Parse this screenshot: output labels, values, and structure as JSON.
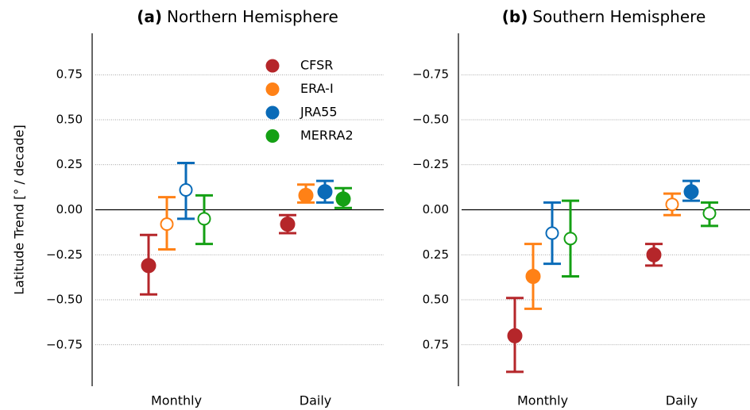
{
  "chart_data": [
    {
      "type": "errorbar",
      "label": "(a)",
      "title": "Northern Hemisphere",
      "ylabel": "Latitude Trend [° / decade]",
      "categories": [
        "Monthly",
        "Daily"
      ],
      "ylim": [
        -0.98,
        0.98
      ],
      "yticks": [
        {
          "value": -0.75,
          "label": "−0.75"
        },
        {
          "value": -0.5,
          "label": "−0.50"
        },
        {
          "value": -0.25,
          "label": "−0.25"
        },
        {
          "value": 0,
          "label": "0.00"
        },
        0.25,
        {
          "value": 0.5,
          "label": "0.50"
        },
        0.75
      ],
      "grid": true,
      "legend": "upper right",
      "series": [
        {
          "name": "CFSR",
          "color": "#b5262a",
          "values": [
            -0.31,
            -0.08
          ],
          "lower": [
            -0.47,
            -0.13
          ],
          "upper": [
            -0.14,
            -0.03
          ],
          "filled": [
            true,
            true
          ]
        },
        {
          "name": "ERA-I",
          "color": "#ff8116",
          "values": [
            -0.08,
            0.08
          ],
          "lower": [
            -0.22,
            0.04
          ],
          "upper": [
            0.07,
            0.14
          ],
          "filled": [
            false,
            true
          ]
        },
        {
          "name": "JRA55",
          "color": "#0a6bb8",
          "values": [
            0.11,
            0.1
          ],
          "lower": [
            -0.05,
            0.04
          ],
          "upper": [
            0.26,
            0.16
          ],
          "filled": [
            false,
            true
          ]
        },
        {
          "name": "MERRA2",
          "color": "#14a014",
          "values": [
            -0.05,
            0.06
          ],
          "lower": [
            -0.19,
            0.01
          ],
          "upper": [
            0.08,
            0.12
          ],
          "filled": [
            false,
            true
          ]
        }
      ]
    },
    {
      "type": "errorbar",
      "label": "(b)",
      "title": "Southern Hemisphere",
      "categories": [
        "Monthly",
        "Daily"
      ],
      "ylim": [
        0.98,
        -0.98
      ],
      "yticks": [
        {
          "value": -0.75,
          "label": "−0.75"
        },
        {
          "value": -0.5,
          "label": "−0.50"
        },
        {
          "value": -0.25,
          "label": "−0.25"
        },
        {
          "value": 0,
          "label": "0.00"
        },
        0.25,
        {
          "value": 0.5,
          "label": "0.50"
        },
        0.75
      ],
      "grid": true,
      "series": [
        {
          "name": "CFSR",
          "color": "#b5262a",
          "values": [
            0.7,
            0.25
          ],
          "lower": [
            0.49,
            0.19
          ],
          "upper": [
            0.9,
            0.31
          ],
          "filled": [
            true,
            true
          ]
        },
        {
          "name": "ERA-I",
          "color": "#ff8116",
          "values": [
            0.37,
            -0.03
          ],
          "lower": [
            0.19,
            -0.09
          ],
          "upper": [
            0.55,
            0.03
          ],
          "filled": [
            true,
            false
          ]
        },
        {
          "name": "JRA55",
          "color": "#0a6bb8",
          "values": [
            0.13,
            -0.1
          ],
          "lower": [
            -0.04,
            -0.16
          ],
          "upper": [
            0.3,
            -0.05
          ],
          "filled": [
            false,
            true
          ]
        },
        {
          "name": "MERRA2",
          "color": "#14a014",
          "values": [
            0.16,
            0.02
          ],
          "lower": [
            -0.05,
            -0.04
          ],
          "upper": [
            0.37,
            0.09
          ],
          "filled": [
            false,
            false
          ]
        }
      ]
    }
  ]
}
